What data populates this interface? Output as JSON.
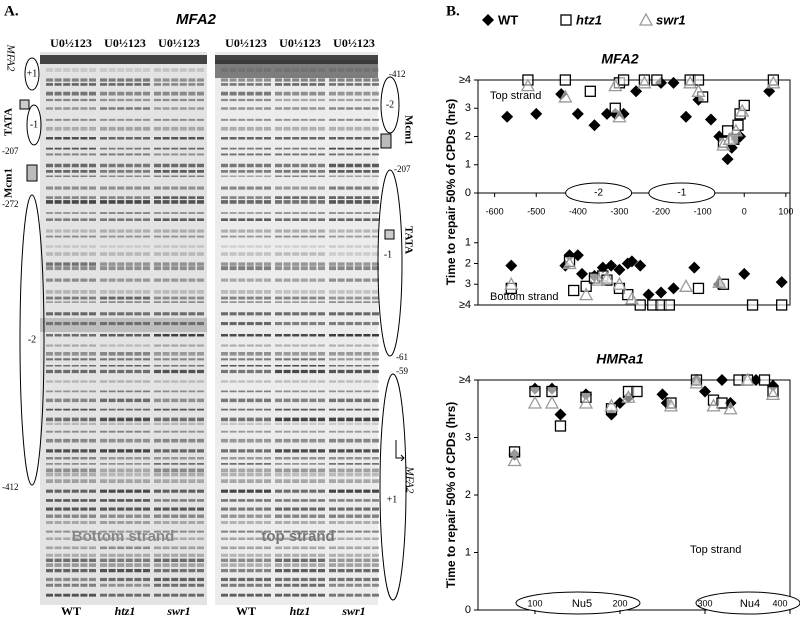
{
  "panel_a": {
    "label": "A.",
    "title": "MFA2",
    "lane_headers": [
      "U0½123",
      "U0½123",
      "U0½123",
      "U0½123",
      "U0½123",
      "U0½123"
    ],
    "strains": [
      "WT",
      "htz1",
      "swr1",
      "WT",
      "htz1",
      "swr1"
    ],
    "gel_labels": [
      "Bottom strand",
      "top strand"
    ],
    "left_map": [
      "MFA2",
      "+1",
      "TATA",
      "-1",
      "-207",
      "Mcm1",
      "-272",
      "-2",
      "-412"
    ],
    "right_map": [
      "-412",
      "-2",
      "Mcm1",
      "-207",
      "TATA",
      "-1",
      "-61",
      "-59",
      "+1",
      "MFA2"
    ]
  },
  "panel_b": {
    "label": "B."
  },
  "chart_data": [
    {
      "type": "scatter",
      "title": "MFA2",
      "y_label": "Time to repair 50% of CPDs (hrs)",
      "annotations": [
        "Top strand",
        "-2",
        "-1"
      ],
      "xlim": [
        -640,
        110
      ],
      "xticks": [
        -600,
        -500,
        -400,
        -300,
        -200,
        -100,
        0,
        100
      ],
      "ylim": [
        0,
        4
      ],
      "yticks": [
        0,
        1,
        2,
        3,
        {
          "value": 4,
          "label": "≥4"
        }
      ],
      "series": [
        {
          "name": "WT",
          "color": "#000000",
          "marker": "diamond",
          "x": [
            -570,
            -500,
            -440,
            -400,
            -360,
            -330,
            -310,
            -290,
            -260,
            -200,
            -170,
            -140,
            -110,
            -80,
            -60,
            -40,
            -30,
            -20,
            -10,
            60
          ],
          "values": [
            2.7,
            2.8,
            3.5,
            2.8,
            2.4,
            2.8,
            2.8,
            2.8,
            3.6,
            3.9,
            3.9,
            2.7,
            3.3,
            2.6,
            2.0,
            1.2,
            1.6,
            1.9,
            2.0,
            3.6
          ]
        },
        {
          "name": "htz1",
          "color": "#000000",
          "marker": "square",
          "x": [
            -520,
            -430,
            -370,
            -310,
            -300,
            -290,
            -240,
            -210,
            -130,
            -110,
            -100,
            -50,
            -40,
            -25,
            -15,
            -10,
            0,
            70
          ],
          "values": [
            4,
            4,
            3.6,
            3.0,
            3.9,
            4,
            4,
            4,
            4,
            4,
            3.4,
            1.8,
            2.2,
            1.9,
            2.4,
            2.8,
            3.1,
            4
          ]
        },
        {
          "name": "swr1",
          "color": "#999999",
          "marker": "triangle",
          "x": [
            -520,
            -430,
            -310,
            -300,
            -240,
            -130,
            -110,
            -50,
            -35,
            -20,
            -5,
            70
          ],
          "values": [
            3.8,
            3.4,
            3.8,
            2.7,
            3.9,
            3.9,
            3.6,
            1.7,
            1.9,
            2.2,
            2.9,
            3.9
          ]
        }
      ]
    },
    {
      "type": "scatter",
      "annotations": [
        "Bottom strand"
      ],
      "xlim": [
        -640,
        110
      ],
      "ylim": [
        4,
        0
      ],
      "yticks": [
        1,
        2,
        3,
        {
          "value": 4,
          "label": "≥4"
        }
      ],
      "series": [
        {
          "name": "WT",
          "color": "#000000",
          "marker": "diamond",
          "x": [
            -560,
            -430,
            -420,
            -400,
            -390,
            -360,
            -340,
            -320,
            -300,
            -280,
            -270,
            -250,
            -230,
            -200,
            -170,
            -120,
            -60,
            0,
            90
          ],
          "values": [
            2.1,
            2.1,
            1.6,
            1.6,
            2.5,
            2.6,
            2.2,
            2.1,
            2.3,
            2.0,
            1.9,
            2.1,
            3.5,
            3.4,
            3.2,
            2.2,
            3.0,
            2.5,
            2.9
          ]
        },
        {
          "name": "htz1",
          "color": "#000000",
          "marker": "square",
          "x": [
            -560,
            -420,
            -410,
            -380,
            -360,
            -340,
            -330,
            -300,
            -280,
            -250,
            -220,
            -200,
            -180,
            -110,
            -50,
            20,
            90
          ],
          "values": [
            3.2,
            1.9,
            3.3,
            3.1,
            2.7,
            2.6,
            2.8,
            3.2,
            3.5,
            4,
            4,
            4,
            4,
            3.2,
            3.0,
            4,
            4
          ]
        },
        {
          "name": "swr1",
          "color": "#999999",
          "marker": "triangle",
          "x": [
            -560,
            -420,
            -380,
            -350,
            -330,
            -300,
            -270,
            -140,
            -60
          ],
          "values": [
            3.0,
            2.0,
            3.5,
            2.8,
            2.7,
            3.0,
            3.7,
            3.1,
            2.9
          ]
        }
      ]
    },
    {
      "type": "scatter",
      "title": "HMRa1",
      "y_label": "Time to repair 50% of CPDs (hrs)",
      "annotations": [
        "Top strand",
        "Nu5",
        "Nu4"
      ],
      "xlim": [
        33,
        400
      ],
      "xticks": [
        100,
        200,
        300,
        400
      ],
      "ylim": [
        0,
        4
      ],
      "yticks": [
        0,
        1,
        2,
        3,
        {
          "value": 4,
          "label": "≥4"
        }
      ],
      "series": [
        {
          "name": "WT",
          "color": "#000000",
          "marker": "diamond",
          "x": [
            76,
            100,
            120,
            130,
            160,
            190,
            200,
            210,
            250,
            255,
            290,
            300,
            320,
            330,
            360,
            380
          ],
          "values": [
            2.7,
            3.85,
            3.85,
            3.4,
            3.75,
            3.4,
            3.6,
            3.7,
            3.75,
            3.6,
            4,
            3.8,
            4,
            3.6,
            4,
            3.9
          ]
        },
        {
          "name": "htz1",
          "color": "#000000",
          "marker": "square",
          "x": [
            76,
            100,
            120,
            130,
            160,
            190,
            210,
            220,
            260,
            290,
            310,
            320,
            340,
            350,
            370,
            380
          ],
          "values": [
            2.75,
            3.8,
            3.8,
            3.2,
            3.7,
            3.5,
            3.8,
            3.8,
            3.6,
            4,
            3.65,
            3.6,
            4,
            4,
            4,
            3.8
          ]
        },
        {
          "name": "swr1",
          "color": "#999999",
          "marker": "triangle",
          "x": [
            76,
            100,
            120,
            160,
            190,
            210,
            260,
            290,
            310,
            330,
            350,
            380
          ],
          "values": [
            2.6,
            3.6,
            3.6,
            3.6,
            3.55,
            3.7,
            3.55,
            3.95,
            3.55,
            3.5,
            4,
            3.75
          ]
        }
      ]
    }
  ]
}
